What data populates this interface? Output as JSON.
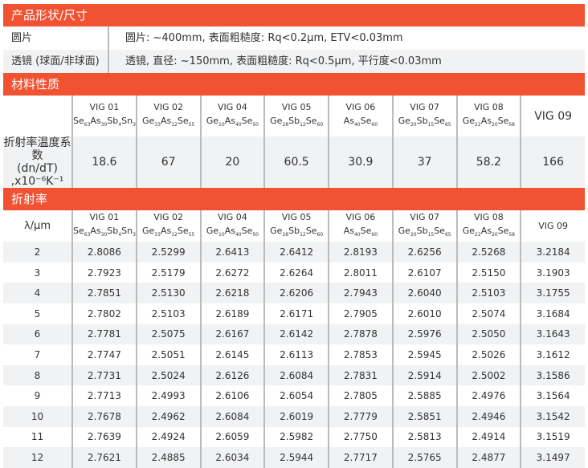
{
  "shape": {
    "title": "产品形状/尺寸",
    "rows": [
      {
        "label": "圆片",
        "value": "圆片: ~400mm, 表面粗糙度: Rq<0.2μm, ETV<0.03mm"
      },
      {
        "label": "透镜 (球面/非球面)",
        "value": "透镜, 直径: ~150mm, 表面粗糙度: Rq<0.5μm, 平行度<0.03mm"
      }
    ]
  },
  "materials": [
    {
      "name": "VIG 01",
      "formula": [
        [
          "Se",
          "63"
        ],
        [
          "As",
          "30"
        ],
        [
          "Sb",
          "4"
        ],
        [
          "Sn",
          "3"
        ]
      ]
    },
    {
      "name": "VIG 02",
      "formula": [
        [
          "Ge",
          "33"
        ],
        [
          "As",
          "12"
        ],
        [
          "Se",
          "55"
        ]
      ]
    },
    {
      "name": "VIG 04",
      "formula": [
        [
          "Ge",
          "10"
        ],
        [
          "As",
          "40"
        ],
        [
          "Se",
          "50"
        ]
      ]
    },
    {
      "name": "VIG 05",
      "formula": [
        [
          "Ge",
          "28"
        ],
        [
          "Sb",
          "12"
        ],
        [
          "Se",
          "60"
        ]
      ]
    },
    {
      "name": "VIG 06",
      "formula": [
        [
          "As",
          "40"
        ],
        [
          "Se",
          "60"
        ]
      ]
    },
    {
      "name": "VIG 07",
      "formula": [
        [
          "Ge",
          "20"
        ],
        [
          "Sb",
          "15"
        ],
        [
          "Se",
          "65"
        ]
      ]
    },
    {
      "name": "VIG 08",
      "formula": [
        [
          "Ge",
          "22"
        ],
        [
          "As",
          "20"
        ],
        [
          "Se",
          "58"
        ]
      ]
    },
    {
      "name": "VIG 09",
      "formula": []
    }
  ],
  "properties": {
    "title": "材料性质",
    "row_label_line1": "折射率温度系数",
    "row_label_line2": "(dn/dT) ,x10⁻⁶K⁻¹",
    "values": [
      "18.6",
      "67",
      "20",
      "60.5",
      "30.9",
      "37",
      "58.2",
      "166"
    ]
  },
  "refractive": {
    "title": "折射率",
    "col_label": "λ/μm",
    "rows": [
      [
        "2",
        "2.8086",
        "2.5299",
        "2.6413",
        "2.6412",
        "2.8193",
        "2.6256",
        "2.5268",
        "3.2184"
      ],
      [
        "3",
        "2.7923",
        "2.5179",
        "2.6272",
        "2.6264",
        "2.8011",
        "2.6107",
        "2.5150",
        "3.1903"
      ],
      [
        "4",
        "2.7851",
        "2.5130",
        "2.6218",
        "2.6206",
        "2.7943",
        "2.6040",
        "2.5103",
        "3.1755"
      ],
      [
        "5",
        "2.7802",
        "2.5103",
        "2.6189",
        "2.6171",
        "2.7905",
        "2.6010",
        "2.5074",
        "3.1684"
      ],
      [
        "6",
        "2.7781",
        "2.5075",
        "2.6167",
        "2.6142",
        "2.7878",
        "2.5976",
        "2.5050",
        "3.1643"
      ],
      [
        "7",
        "2.7747",
        "2.5051",
        "2.6145",
        "2.6113",
        "2.7853",
        "2.5945",
        "2.5026",
        "3.1612"
      ],
      [
        "8",
        "2.7731",
        "2.5024",
        "2.6126",
        "2.6084",
        "2.7831",
        "2.5914",
        "2.5002",
        "3.1586"
      ],
      [
        "9",
        "2.7713",
        "2.4993",
        "2.6106",
        "2.6054",
        "2.7805",
        "2.5885",
        "2.4976",
        "3.1564"
      ],
      [
        "10",
        "2.7678",
        "2.4962",
        "2.6084",
        "2.6019",
        "2.7779",
        "2.5851",
        "2.4946",
        "3.1542"
      ],
      [
        "11",
        "2.7639",
        "2.4924",
        "2.6059",
        "2.5982",
        "2.7750",
        "2.5813",
        "2.4914",
        "3.1519"
      ],
      [
        "12",
        "2.7621",
        "2.4885",
        "2.6034",
        "2.5944",
        "2.7717",
        "2.5765",
        "2.4877",
        "3.1497"
      ]
    ]
  },
  "colors": {
    "accent": "#f15232",
    "row_alt": "#f1f2f4"
  }
}
